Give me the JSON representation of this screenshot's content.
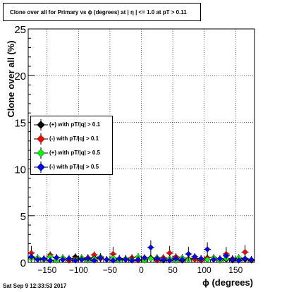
{
  "title": "Clone  over all for Primary vs ϕ (degrees) at | η | <= 1.0 at pT > 0.11",
  "datestamp": "Sat Sep  9 12:33:53 2017",
  "chart_data": {
    "type": "scatter",
    "xlabel": "ϕ (degrees)",
    "ylabel": "Clone  over all (%)",
    "xlim": [
      -180,
      180
    ],
    "ylim": [
      0,
      25
    ],
    "x_ticks": [
      -150,
      -100,
      -50,
      0,
      50,
      100,
      150
    ],
    "x_tick_labels": [
      "−150",
      "−100",
      "−50",
      "0",
      "50",
      "100",
      "150"
    ],
    "y_ticks": [
      0,
      5,
      10,
      15,
      20,
      25
    ],
    "y_tick_labels": [
      "0",
      "5",
      "10",
      "15",
      "20",
      "25"
    ],
    "grid": true,
    "legend_position": "left-middle",
    "series": [
      {
        "name": "(+) with pT/|q| > 0.1",
        "color": "#000000",
        "x": [
          -175,
          -165,
          -155,
          -145,
          -135,
          -125,
          -115,
          -105,
          -95,
          -85,
          -75,
          -65,
          -55,
          -45,
          -35,
          -25,
          -15,
          -5,
          5,
          15,
          25,
          35,
          45,
          55,
          65,
          75,
          85,
          95,
          105,
          115,
          125,
          135,
          145,
          155,
          165,
          175
        ],
        "y": [
          0.5,
          0.4,
          0.3,
          0.2,
          0.5,
          0.3,
          0.2,
          0.6,
          0.4,
          0.3,
          0.5,
          0.4,
          0.3,
          0.2,
          0.3,
          0.4,
          0.2,
          0.3,
          0.2,
          0.5,
          0.3,
          0.2,
          0.4,
          0.3,
          0.2,
          0.3,
          0.4,
          0.2,
          0.3,
          0.5,
          0.2,
          0.3,
          0.2,
          0.4,
          0.3,
          0.2
        ]
      },
      {
        "name": "(-) with pT/|q| > 0.1",
        "color": "#ff0000",
        "x": [
          -175,
          -165,
          -155,
          -145,
          -135,
          -125,
          -115,
          -105,
          -95,
          -85,
          -75,
          -65,
          -55,
          -45,
          -35,
          -25,
          -15,
          -5,
          5,
          15,
          25,
          35,
          45,
          55,
          65,
          75,
          85,
          95,
          105,
          115,
          125,
          135,
          145,
          155,
          165,
          175
        ],
        "y": [
          1.0,
          0.4,
          0.3,
          0.8,
          0.5,
          0.3,
          0.2,
          0.4,
          0.3,
          0.5,
          0.8,
          0.4,
          0.3,
          0.9,
          0.4,
          0.3,
          0.5,
          0.2,
          0.3,
          0.4,
          0.2,
          0.5,
          1.0,
          0.6,
          0.3,
          0.4,
          0.3,
          0.2,
          0.5,
          0.3,
          0.2,
          0.9,
          0.4,
          0.2,
          1.1,
          0.3
        ]
      },
      {
        "name": "(+) with pT/|q| > 0.5",
        "color": "#00ff00",
        "x": [
          -175,
          -165,
          -155,
          -145,
          -135,
          -125,
          -115,
          -105,
          -95,
          -85,
          -75,
          -65,
          -55,
          -45,
          -35,
          -25,
          -15,
          -5,
          5,
          15,
          25,
          35,
          45,
          55,
          65,
          75,
          85,
          95,
          105,
          115,
          125,
          135,
          145,
          155,
          165,
          175
        ],
        "y": [
          0.4,
          0.5,
          0.3,
          0.6,
          0.2,
          0.5,
          0.4,
          0.3,
          0.5,
          0.2,
          0.4,
          0.6,
          0.3,
          0.5,
          0.2,
          0.4,
          0.3,
          0.6,
          0.2,
          0.4,
          0.5,
          0.3,
          0.4,
          0.2,
          0.5,
          0.3,
          0.6,
          0.4,
          0.3,
          0.5,
          0.2,
          0.4,
          0.3,
          0.5,
          0.4,
          0.3
        ]
      },
      {
        "name": "(-) with pT/|q| > 0.5",
        "color": "#0000ff",
        "x": [
          -175,
          -165,
          -155,
          -145,
          -135,
          -125,
          -115,
          -105,
          -95,
          -85,
          -75,
          -65,
          -55,
          -45,
          -35,
          -25,
          -15,
          -5,
          5,
          15,
          25,
          35,
          45,
          55,
          65,
          75,
          85,
          95,
          105,
          115,
          125,
          135,
          145,
          155,
          165,
          175
        ],
        "y": [
          0.6,
          0.3,
          0.4,
          0.2,
          0.5,
          0.3,
          0.4,
          0.2,
          0.3,
          0.4,
          0.2,
          0.5,
          0.3,
          0.2,
          0.4,
          0.3,
          0.2,
          0.3,
          0.5,
          1.6,
          0.4,
          0.3,
          0.2,
          0.4,
          0.3,
          0.9,
          0.6,
          0.4,
          1.4,
          0.3,
          0.4,
          0.7,
          0.3,
          0.2,
          0.4,
          0.3
        ]
      }
    ]
  }
}
